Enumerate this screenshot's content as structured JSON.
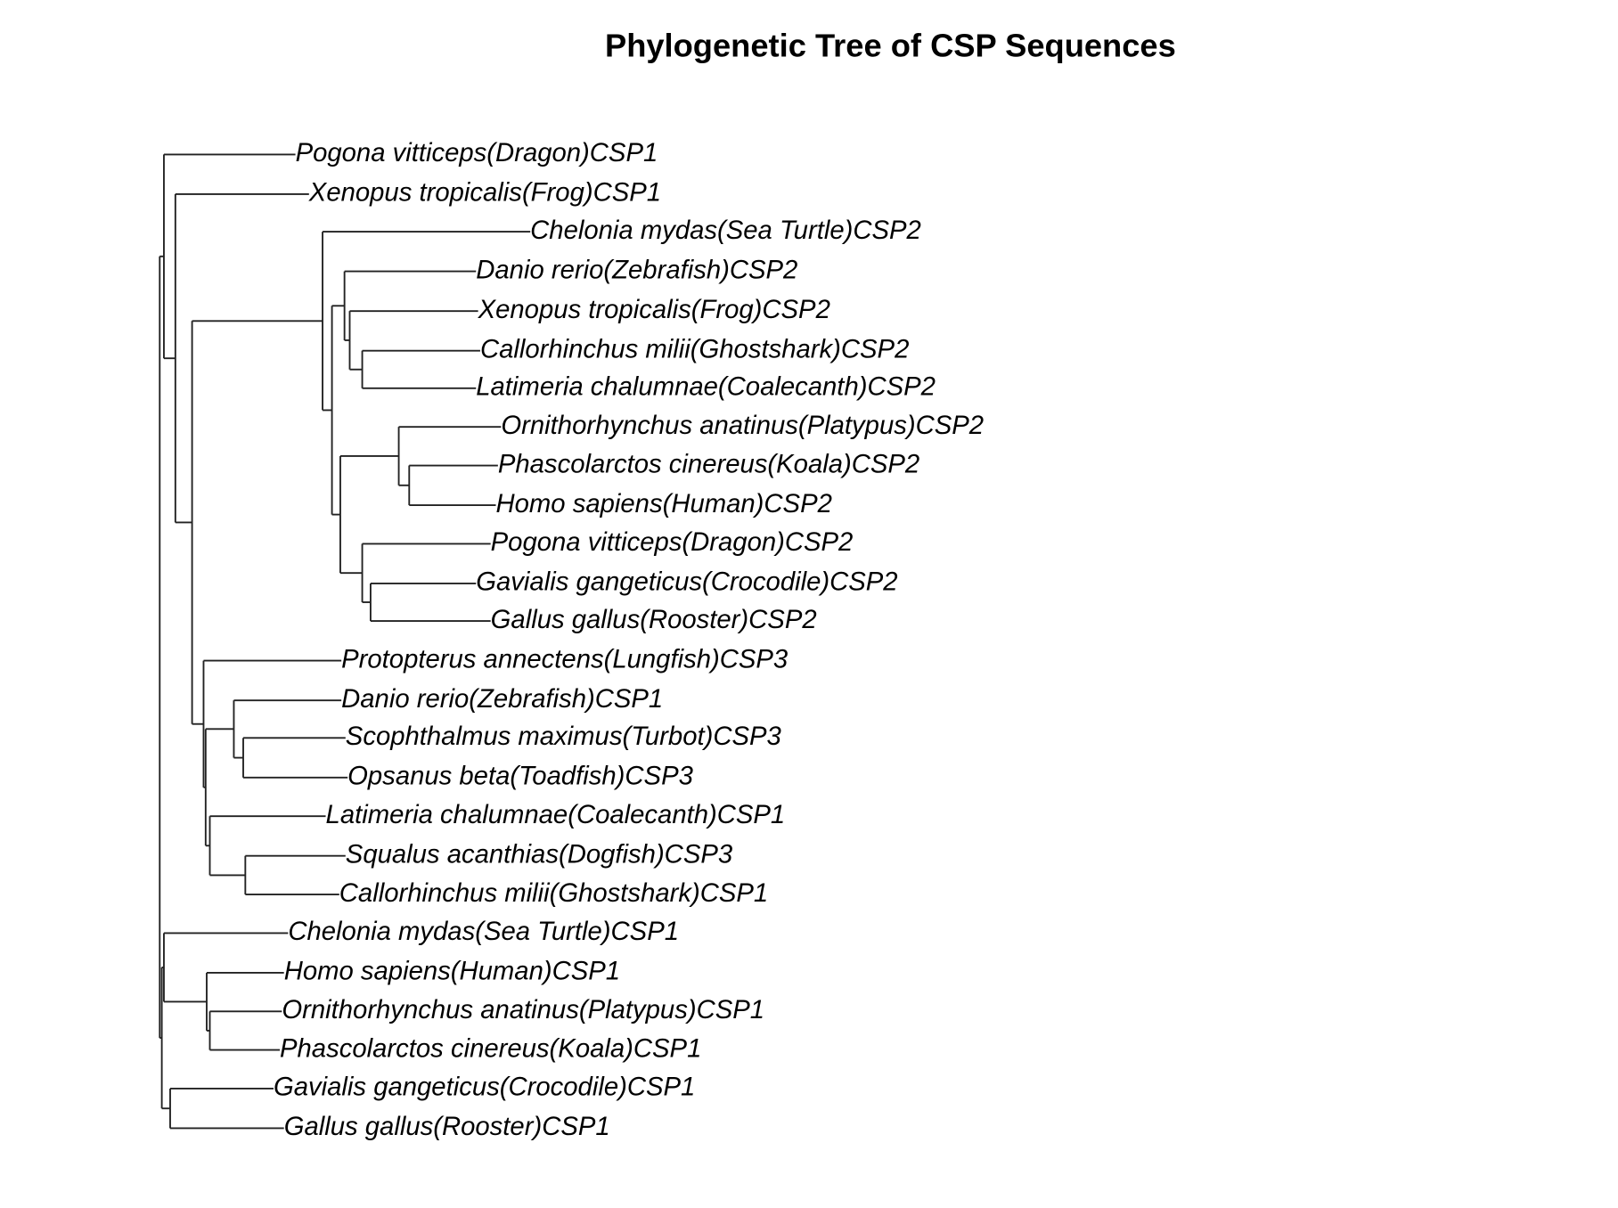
{
  "title": "Phylogenetic Tree of CSP Sequences",
  "leaves": [
    "Pogona vitticeps(Dragon)CSP1",
    "Xenopus tropicalis(Frog)CSP1",
    "Chelonia mydas(Sea Turtle)CSP2",
    "Danio rerio(Zebrafish)CSP2",
    "Xenopus tropicalis(Frog)CSP2",
    "Callorhinchus milii(Ghostshark)CSP2",
    "Latimeria chalumnae(Coalecanth)CSP2",
    "Ornithorhynchus anatinus(Platypus)CSP2",
    "Phascolarctos cinereus(Koala)CSP2",
    "Homo sapiens(Human)CSP2",
    "Pogona vitticeps(Dragon)CSP2",
    "Gavialis gangeticus(Crocodile)CSP2",
    "Gallus gallus(Rooster)CSP2",
    "Protopterus annectens(Lungfish)CSP3",
    "Danio rerio(Zebrafish)CSP1",
    "Scophthalmus maximus(Turbot)CSP3",
    "Opsanus beta(Toadfish)CSP3",
    "Latimeria chalumnae(Coalecanth)CSP1",
    "Squalus acanthias(Dogfish)CSP3",
    "Callorhinchus milii(Ghostshark)CSP1",
    "Chelonia mydas(Sea Turtle)CSP1",
    "Homo sapiens(Human)CSP1",
    "Ornithorhynchus anatinus(Platypus)CSP1",
    "Phascolarctos cinereus(Koala)CSP1",
    "Gavialis gangeticus(Crocodile)CSP1",
    "Gallus gallus(Rooster)CSP1"
  ]
}
